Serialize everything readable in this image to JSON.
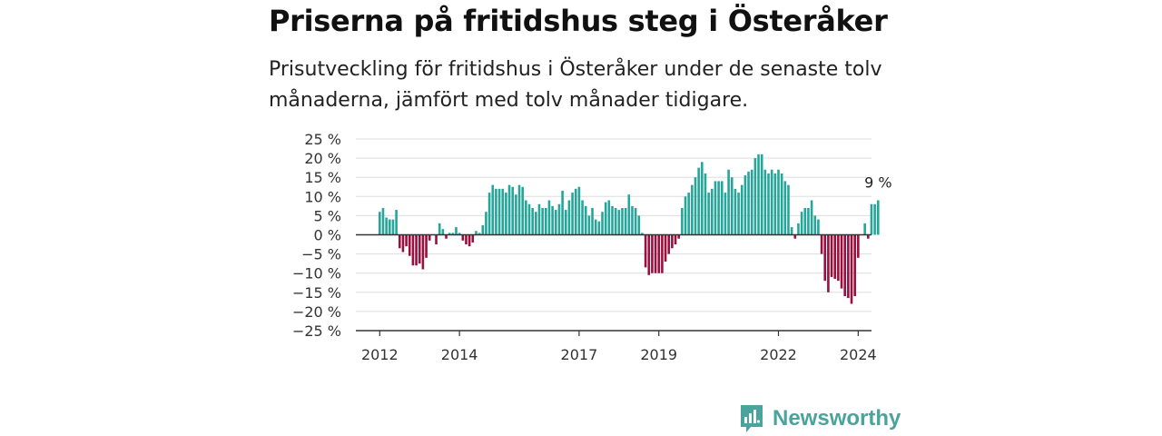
{
  "title": "Priserna på fritidshus steg i Österåker",
  "subtitle": "Prisutveckling för fritidshus i Österåker under de senaste tolv månaderna, jämfört med tolv månader tidigare.",
  "logo": {
    "text": "Newsworthy",
    "icon": "newsworthy-logo-icon",
    "color": "#4aa39c"
  },
  "colors": {
    "positive": "#26a69a",
    "negative": "#990f3d",
    "grid": "#dddddd",
    "zero_line": "#333333"
  },
  "chart_data": {
    "type": "bar",
    "xlabel": "",
    "ylabel": "",
    "ylim": [
      -25,
      25
    ],
    "yticks": [
      25,
      20,
      15,
      10,
      5,
      0,
      -5,
      -10,
      -15,
      -20,
      -25
    ],
    "ytick_labels": [
      "25 %",
      "20 %",
      "15 %",
      "10 %",
      "5 %",
      "0 %",
      "−5 %",
      "−10 %",
      "−15 %",
      "−20 %",
      "−25 %"
    ],
    "xticks": [
      {
        "label": "2012",
        "at": "2012-01"
      },
      {
        "label": "2014",
        "at": "2014-01"
      },
      {
        "label": "2017",
        "at": "2017-01"
      },
      {
        "label": "2019",
        "at": "2019-01"
      },
      {
        "label": "2022",
        "at": "2022-01"
      },
      {
        "label": "2024",
        "at": "2024-01"
      }
    ],
    "grid": true,
    "start_month": "2012-01",
    "series": [
      {
        "values": [
          6,
          7,
          4.5,
          4,
          4,
          6.5,
          -3.5,
          -4.5,
          -3,
          -5.5,
          -8,
          -8,
          -7.5,
          -9,
          -6,
          -1.5,
          0,
          -2.5,
          3,
          1.5,
          -1,
          0.5,
          0.5,
          2,
          0.5,
          -1.5,
          -2.5,
          -3,
          -2,
          1,
          0.5,
          2.5,
          6,
          11,
          13,
          12,
          12,
          12,
          11,
          13,
          12.5,
          10.5,
          13,
          12.5,
          9,
          8,
          7,
          6,
          8,
          7,
          7,
          9,
          7.5,
          6.5,
          8,
          11.5,
          6.5,
          9,
          11,
          12,
          12.5,
          9,
          7.5,
          5,
          7,
          4,
          3.5,
          6,
          8.5,
          9,
          7.5,
          7,
          6.5,
          7,
          7,
          10.5,
          7.5,
          7,
          5,
          0.5,
          -8.5,
          -10.5,
          -10,
          -10,
          -10,
          -10,
          -7,
          -5,
          -3.5,
          -2.5,
          -1,
          7,
          10,
          11,
          13,
          15,
          17.5,
          19,
          16,
          11,
          12,
          14,
          14,
          14,
          11,
          17,
          15,
          12,
          11,
          13,
          15.5,
          16.5,
          17,
          20,
          21,
          21,
          17,
          16,
          17,
          16,
          17,
          16,
          14,
          13,
          2,
          -1,
          3,
          6,
          7,
          7,
          9,
          5,
          4,
          -5,
          -12,
          -15,
          -11,
          -11.5,
          -12,
          -14,
          -16,
          -16.5,
          -18,
          -16,
          -6,
          0,
          3,
          -1,
          8,
          8,
          9
        ]
      }
    ],
    "annotations": [
      {
        "text": "9 %",
        "at": "last"
      }
    ]
  }
}
